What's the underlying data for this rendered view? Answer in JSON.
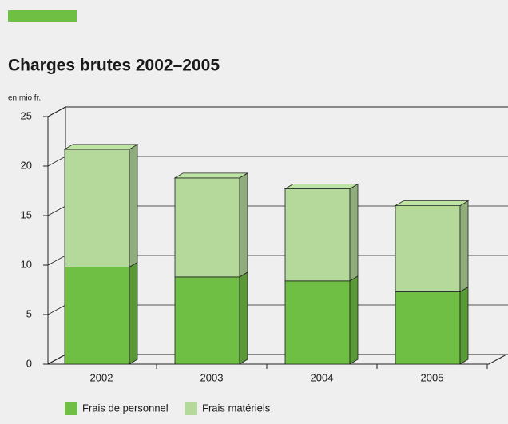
{
  "chart_data": {
    "type": "bar3d_stacked",
    "title": "Charges brutes 2002–2005",
    "y_label": "en mio fr.",
    "categories": [
      "2002",
      "2003",
      "2004",
      "2005"
    ],
    "series": [
      {
        "name": "Frais de personnel",
        "color": "#6fbf44",
        "values": [
          9.8,
          8.8,
          8.4,
          7.3
        ]
      },
      {
        "name": "Frais matériels",
        "color": "#b4d99b",
        "values": [
          11.9,
          10.0,
          9.3,
          8.7
        ]
      }
    ],
    "ylim": [
      0,
      25
    ],
    "yticks": [
      0,
      5,
      10,
      15,
      20,
      25
    ],
    "grid": true,
    "legend": "bottom"
  }
}
